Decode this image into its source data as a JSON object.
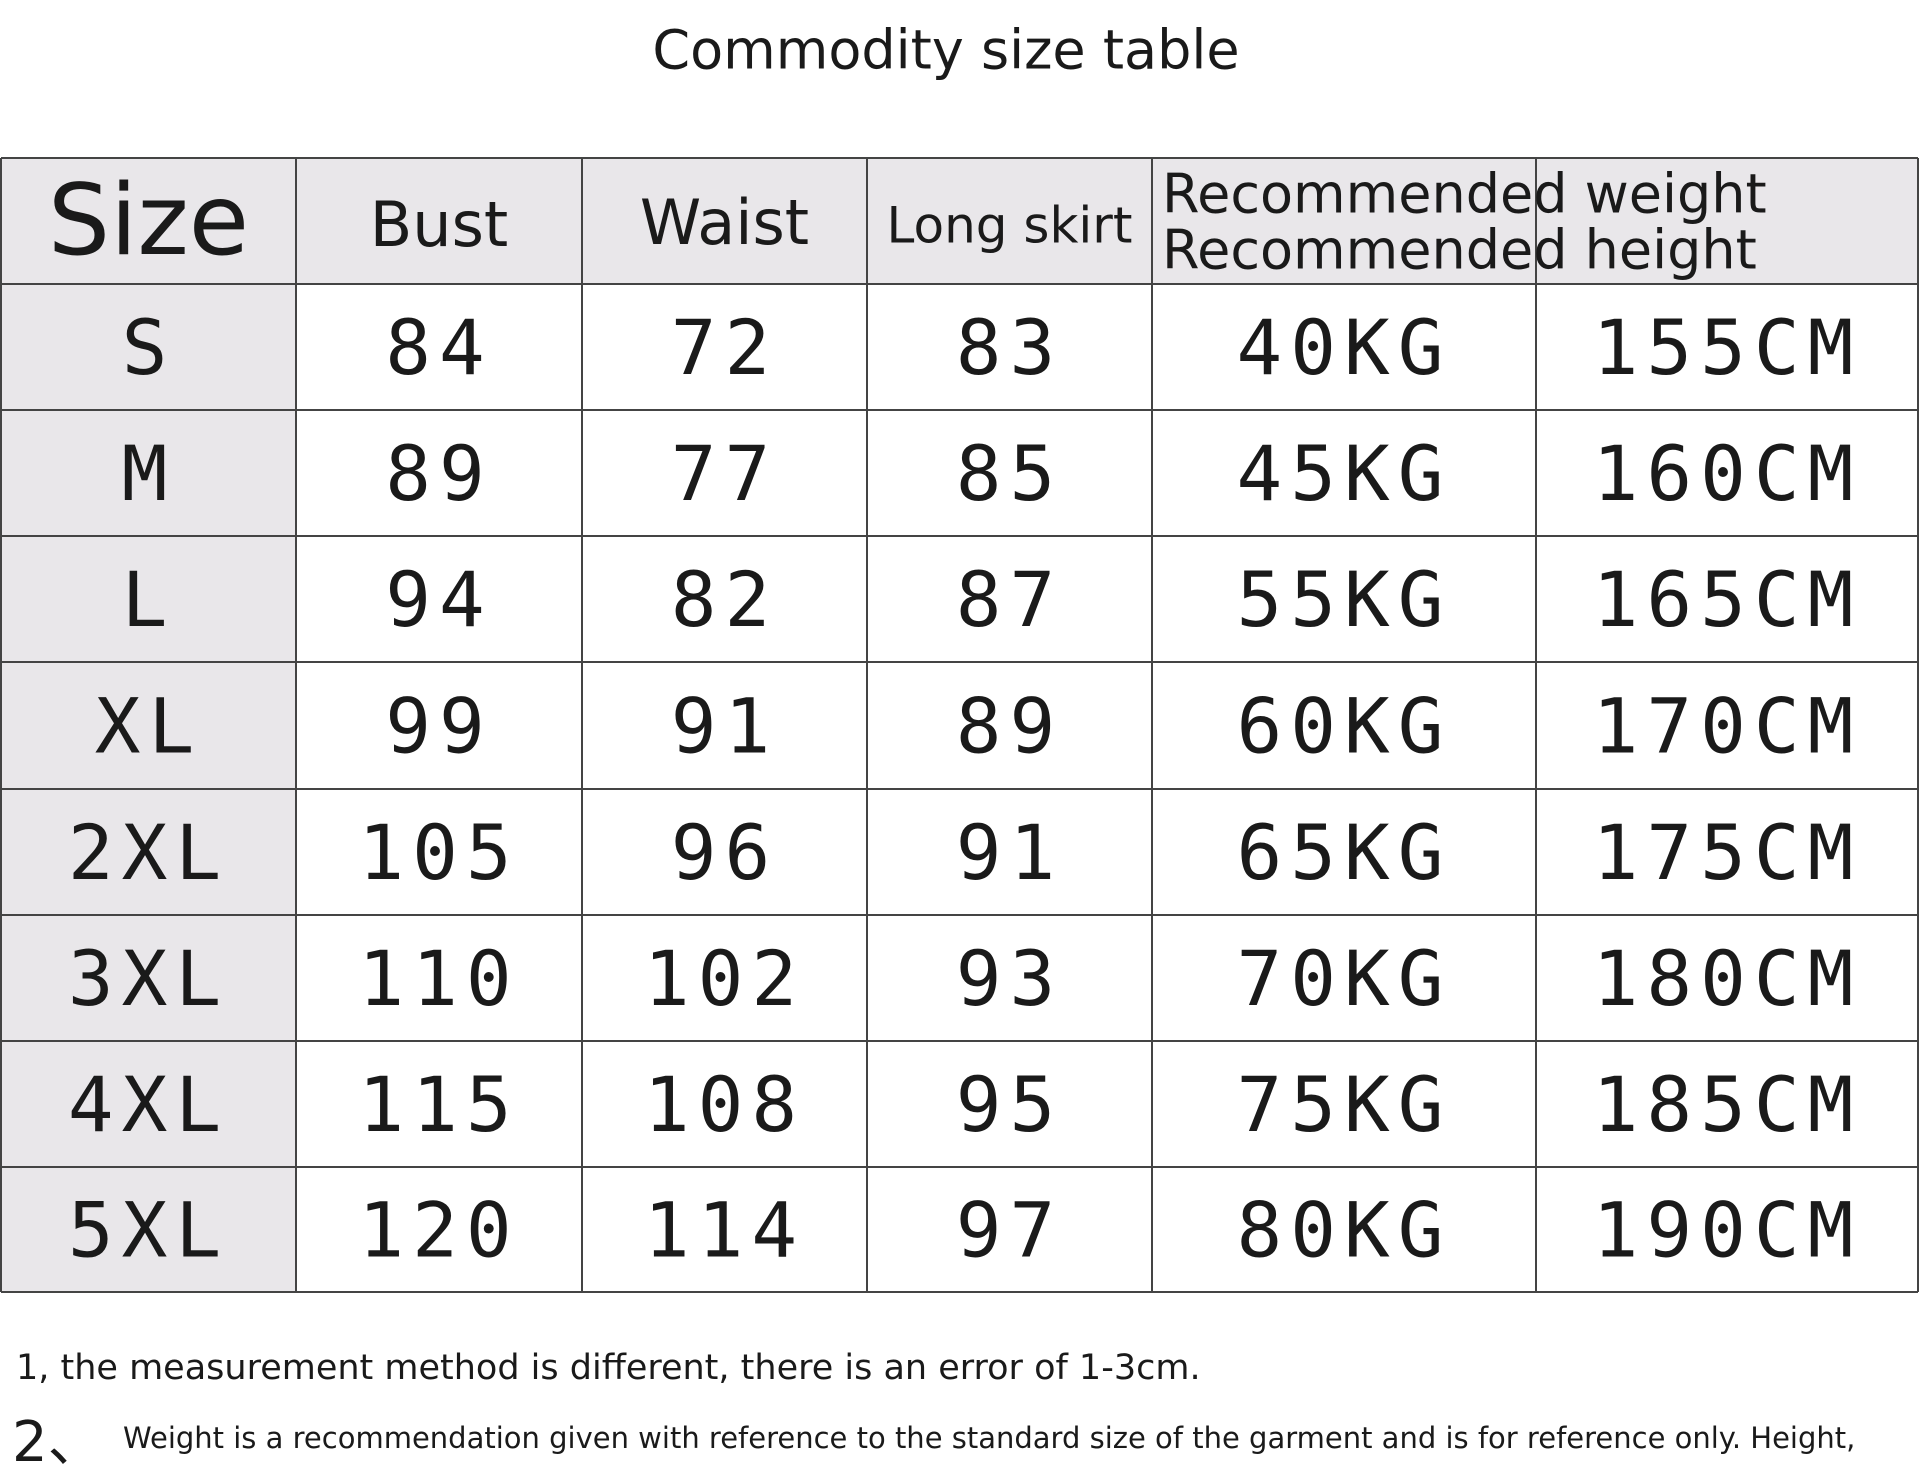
{
  "title": "Commodity size table",
  "table": {
    "header": [
      "Size",
      "Bust",
      "Waist",
      "Long skirt",
      "Recommended weight",
      "Recommended height"
    ],
    "rows": [
      [
        "S",
        84,
        72,
        83,
        "40KG",
        "155CM"
      ],
      [
        "M",
        89,
        77,
        85,
        "45KG",
        "160CM"
      ],
      [
        "L",
        94,
        82,
        87,
        "55KG",
        "165CM"
      ],
      [
        "XL",
        99,
        91,
        89,
        "60KG",
        "170CM"
      ],
      [
        "2XL",
        105,
        96,
        91,
        "65KG",
        "175CM"
      ],
      [
        "3XL",
        110,
        102,
        93,
        "70KG",
        "180CM"
      ],
      [
        "4XL",
        115,
        108,
        95,
        "75KG",
        "185CM"
      ],
      [
        "5XL",
        120,
        114,
        97,
        "80KG",
        "190CM"
      ]
    ]
  },
  "notes": {
    "note1": "1, the measurement method is different, there is an error of 1-3cm.",
    "note2_marker": "2、",
    "note2": "Weight is a recommendation given with reference to the standard size of the garment and is for reference only. Height,"
  }
}
